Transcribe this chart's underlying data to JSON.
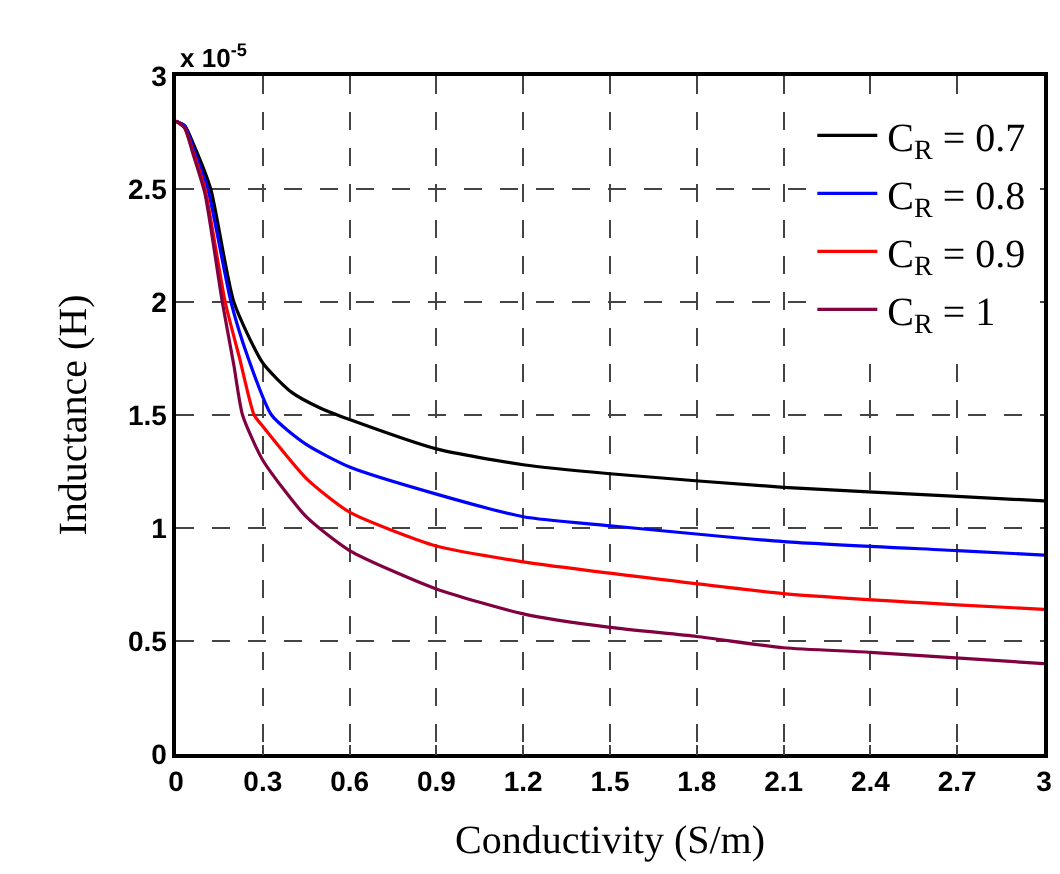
{
  "chart_data": {
    "type": "line",
    "xlabel": "Conductivity (S/m)",
    "ylabel": "Inductance (H)",
    "annotations": [
      "x 10$^{-5}$"
    ],
    "xlim": [
      0,
      3
    ],
    "xticks": [
      0,
      0.3,
      0.6,
      0.9,
      1.2,
      1.5,
      1.8,
      2.1,
      2.4,
      2.7,
      3
    ],
    "ylim": [
      0,
      3
    ],
    "yticks": [
      0,
      0.5,
      1,
      1.5,
      2,
      2.5,
      3
    ],
    "grid": true,
    "legend": "top right",
    "series": [
      {
        "name": "C$_{R}$ = 0.7",
        "color": "#000000",
        "x": [
          0,
          0.03,
          0.06,
          0.12,
          0.2,
          0.3,
          0.4,
          0.5,
          0.6,
          0.9,
          1.2,
          1.5,
          2.1,
          2.7,
          3
        ],
        "values": [
          2.8,
          2.78,
          2.7,
          2.5,
          2.0,
          1.73,
          1.6,
          1.53,
          1.48,
          1.35,
          1.28,
          1.24,
          1.18,
          1.14,
          1.12
        ]
      },
      {
        "name": "C$_{R}$ = 0.8",
        "color": "#0000ff",
        "x": [
          0,
          0.03,
          0.06,
          0.11,
          0.19,
          0.25,
          0.33,
          0.45,
          0.6,
          0.9,
          1.2,
          1.5,
          2.1,
          2.7,
          3
        ],
        "values": [
          2.8,
          2.78,
          2.68,
          2.5,
          2.0,
          1.75,
          1.5,
          1.37,
          1.27,
          1.15,
          1.05,
          1.01,
          0.94,
          0.9,
          0.88
        ]
      },
      {
        "name": "C$_{R}$ = 0.9",
        "color": "#ff0000",
        "x": [
          0,
          0.03,
          0.06,
          0.1,
          0.17,
          0.22,
          0.27,
          0.3,
          0.45,
          0.6,
          0.9,
          1.2,
          1.5,
          2.1,
          2.7,
          3
        ],
        "values": [
          2.8,
          2.77,
          2.66,
          2.5,
          2.0,
          1.75,
          1.5,
          1.45,
          1.22,
          1.07,
          0.92,
          0.85,
          0.8,
          0.71,
          0.66,
          0.64
        ]
      },
      {
        "name": "C$_{R}$ = 1",
        "color": "#800040",
        "x": [
          0,
          0.03,
          0.06,
          0.1,
          0.16,
          0.2,
          0.23,
          0.3,
          0.45,
          0.6,
          0.9,
          1.2,
          1.5,
          1.8,
          2.1,
          2.4,
          3
        ],
        "values": [
          2.8,
          2.77,
          2.65,
          2.48,
          2.0,
          1.72,
          1.5,
          1.3,
          1.05,
          0.9,
          0.73,
          0.62,
          0.56,
          0.52,
          0.47,
          0.45,
          0.4
        ]
      }
    ]
  }
}
